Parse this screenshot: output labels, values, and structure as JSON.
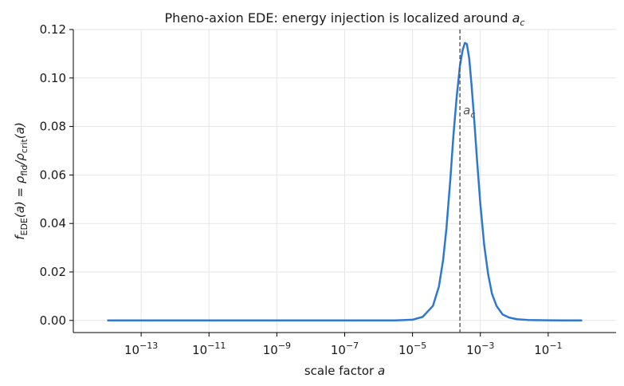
{
  "chart_data": {
    "type": "line",
    "title": "Pheno-axion EDE: energy injection is localized around a_c",
    "xlabel": "scale factor a",
    "ylabel": "f_EDE(a) = ρ_fld/ρ_crit(a)",
    "xscale": "log",
    "xlim": [
      1e-15,
      10
    ],
    "ylim": [
      -0.005,
      0.12
    ],
    "xticks": [
      1e-13,
      1e-11,
      1e-09,
      1e-07,
      1e-05,
      0.001,
      0.1
    ],
    "xtick_labels": [
      "10^−13",
      "10^−11",
      "10^−9",
      "10^−7",
      "10^−5",
      "10^−3",
      "10^−1"
    ],
    "yticks": [
      0.0,
      0.02,
      0.04,
      0.06,
      0.08,
      0.1,
      0.12
    ],
    "ytick_labels": [
      "0.00",
      "0.02",
      "0.04",
      "0.06",
      "0.08",
      "0.10",
      "0.12"
    ],
    "grid": true,
    "series": [
      {
        "color": "#2e78d2",
        "x": [
          1e-14,
          1e-12,
          1e-10,
          1e-08,
          1e-06,
          3e-06,
          1e-05,
          2e-05,
          4e-05,
          6e-05,
          8e-05,
          0.0001,
          0.00013,
          0.00016,
          0.0002,
          0.00025,
          0.0003,
          0.00035,
          0.0004,
          0.00047,
          0.00055,
          0.00065,
          0.0008,
          0.001,
          0.0013,
          0.0017,
          0.0022,
          0.003,
          0.0045,
          0.007,
          0.012,
          0.025,
          0.06,
          0.1,
          0.3,
          1
        ],
        "y": [
          0,
          0,
          0,
          0,
          0,
          0,
          0.0003,
          0.0015,
          0.006,
          0.014,
          0.025,
          0.038,
          0.058,
          0.076,
          0.092,
          0.105,
          0.1115,
          0.1145,
          0.114,
          0.108,
          0.097,
          0.084,
          0.066,
          0.048,
          0.031,
          0.019,
          0.011,
          0.006,
          0.0025,
          0.0012,
          0.0005,
          0.0002,
          8e-05,
          4e-05,
          1e-05,
          0
        ]
      }
    ],
    "annotations": [
      {
        "label": "a_c",
        "x": 0.00025,
        "style": "dashed vertical line",
        "color": "#555555"
      }
    ]
  }
}
